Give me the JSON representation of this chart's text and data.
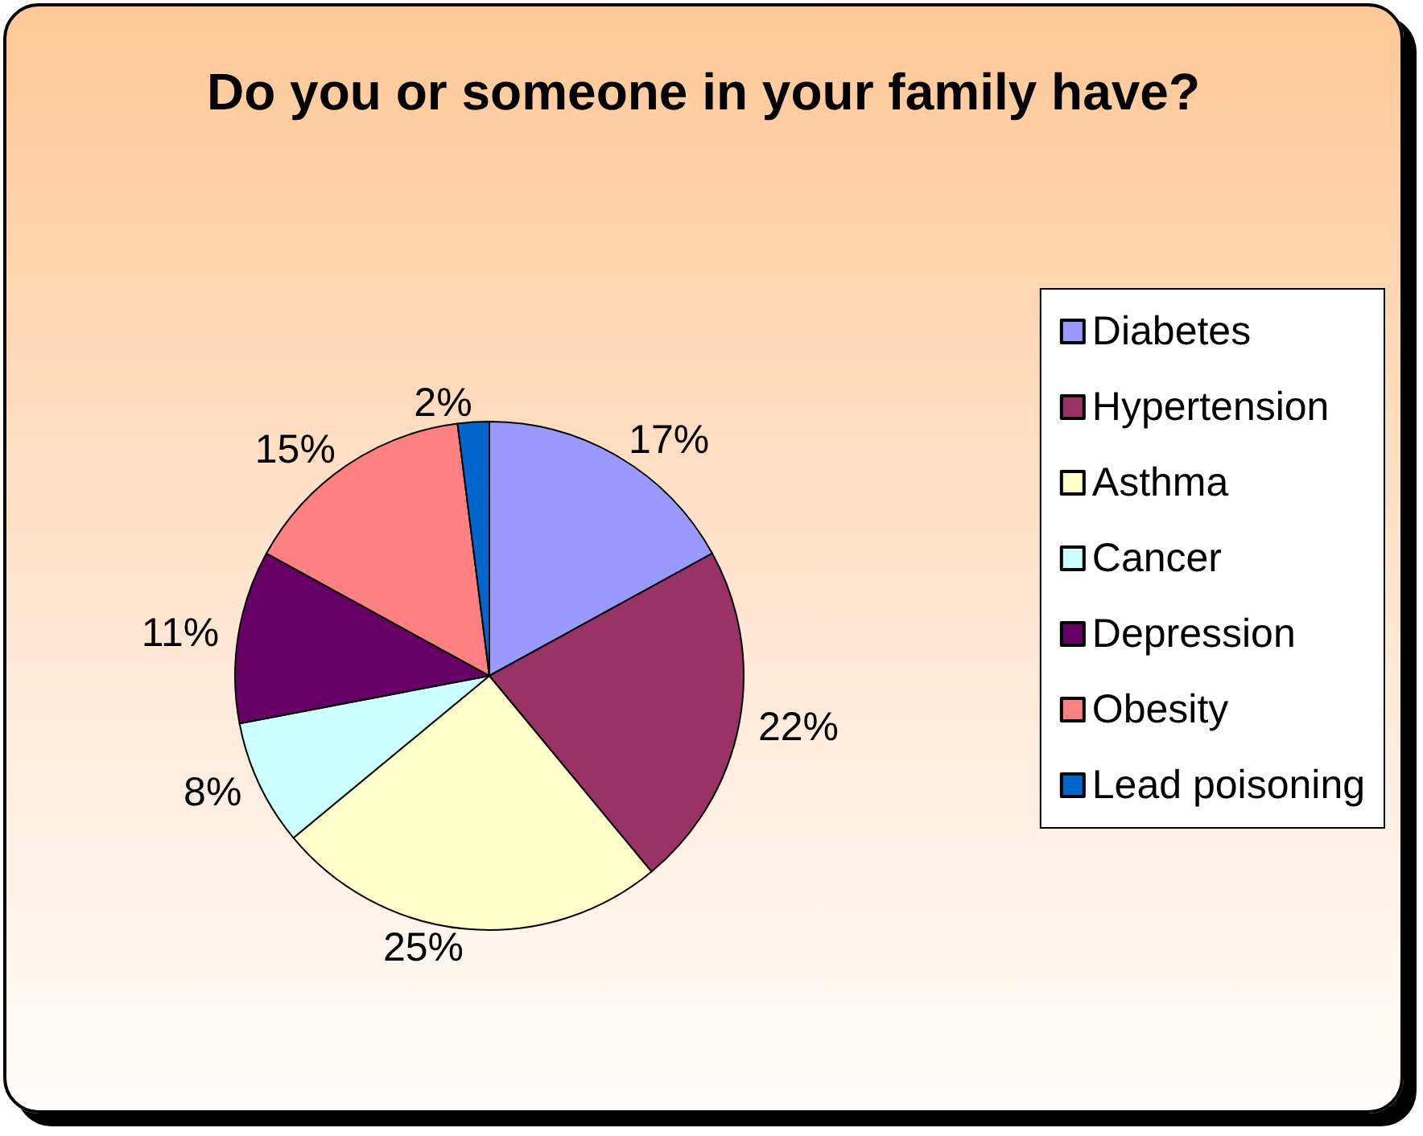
{
  "chart_data": {
    "type": "pie",
    "title": "Do you or someone in your family have?",
    "categories": [
      "Diabetes",
      "Hypertension",
      "Asthma",
      "Cancer",
      "Depression",
      "Obesity",
      "Lead poisoning"
    ],
    "values": [
      17,
      22,
      25,
      8,
      11,
      15,
      2
    ],
    "value_labels": [
      "17%",
      "22%",
      "25%",
      "8%",
      "11%",
      "15%",
      "2%"
    ],
    "colors": [
      "#9999ff",
      "#993366",
      "#ffffcc",
      "#ccffff",
      "#660066",
      "#ff8080",
      "#0066cc"
    ],
    "legend": "right"
  }
}
